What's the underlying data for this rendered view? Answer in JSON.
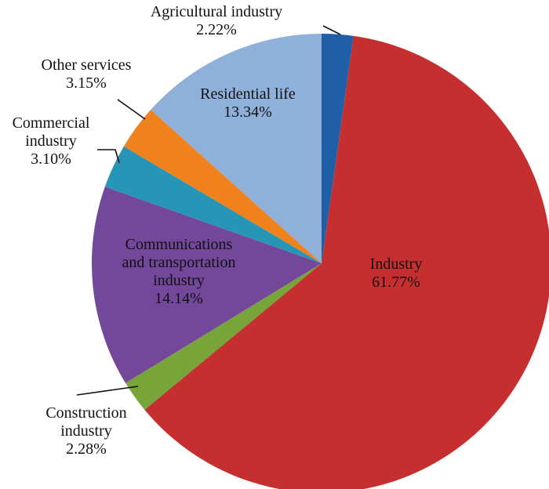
{
  "chart_data": {
    "type": "pie",
    "title": "",
    "start_angle_deg": 0,
    "direction": "clockwise",
    "slices": [
      {
        "name": "Agricultural industry",
        "label_lines": [
          "Agricultural industry",
          "2.22%"
        ],
        "value": 2.22,
        "value_text": "2.22%",
        "color": "#1f5fa6",
        "label_position": "outside"
      },
      {
        "name": "Industry",
        "label_lines": [
          "Industry",
          "61.77%"
        ],
        "value": 61.77,
        "value_text": "61.77%",
        "color": "#c62f2f",
        "label_position": "inside"
      },
      {
        "name": "Construction industry",
        "label_lines": [
          "Construction",
          "industry",
          "2.28%"
        ],
        "value": 2.28,
        "value_text": "2.28%",
        "color": "#77a53a",
        "label_position": "outside"
      },
      {
        "name": "Communications and transportation industry",
        "label_lines": [
          "Communications",
          "and transportation",
          "industry",
          "14.14%"
        ],
        "value": 14.14,
        "value_text": "14.14%",
        "color": "#73479a",
        "label_position": "inside"
      },
      {
        "name": "Commercial industry",
        "label_lines": [
          "Commercial",
          "industry",
          "3.10%"
        ],
        "value": 3.1,
        "value_text": "3.10%",
        "color": "#2796b6",
        "label_position": "outside"
      },
      {
        "name": "Other services",
        "label_lines": [
          "Other services",
          "3.15%"
        ],
        "value": 3.15,
        "value_text": "3.15%",
        "color": "#f0821d",
        "label_position": "outside"
      },
      {
        "name": "Residential life",
        "label_lines": [
          "Residential life",
          "13.34%"
        ],
        "value": 13.34,
        "value_text": "13.34%",
        "color": "#8fb0d9",
        "label_position": "inside"
      }
    ]
  }
}
